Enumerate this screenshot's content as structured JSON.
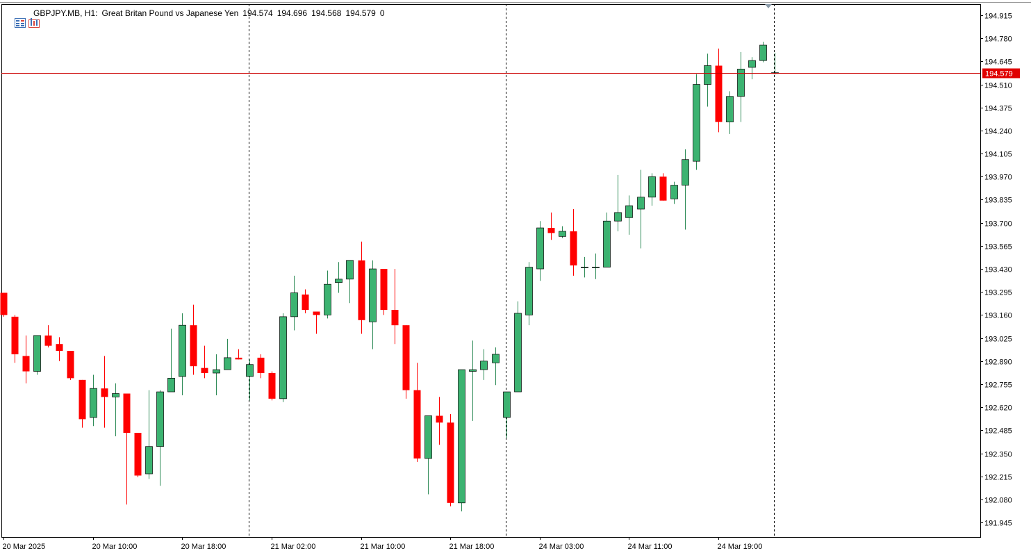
{
  "header": {
    "symbol": "GBPJPY.MB, H1:",
    "description": "Great Britan Pound vs Japanese Yen",
    "open": "194.574",
    "high": "194.696",
    "low": "194.568",
    "close": "194.579",
    "volume": "0"
  },
  "icons": [
    "window-list-icon",
    "chart-window-icon"
  ],
  "colors": {
    "bull": "#3CB371",
    "bear": "#FF0000",
    "wick_bull": "#2E8B57",
    "price_line": "#CC0000",
    "price_tag_bg": "#E00000",
    "axis": "#000000",
    "separator": "#000000"
  },
  "chart_data": {
    "type": "candlestick",
    "symbol": "GBPJPY.MB",
    "timeframe": "H1",
    "current_price": "194.579",
    "ylim": [
      191.86,
      194.98
    ],
    "y_ticks": [
      "194.915",
      "194.780",
      "194.645",
      "194.510",
      "194.375",
      "194.240",
      "194.105",
      "193.970",
      "193.835",
      "193.700",
      "193.565",
      "193.430",
      "193.295",
      "193.160",
      "193.025",
      "192.890",
      "192.755",
      "192.620",
      "192.485",
      "192.350",
      "192.215",
      "192.080",
      "191.945"
    ],
    "x_labels": [
      {
        "index": 0,
        "label": "20 Mar 2025"
      },
      {
        "index": 8,
        "label": "20 Mar 10:00"
      },
      {
        "index": 16,
        "label": "20 Mar 18:00"
      },
      {
        "index": 24,
        "label": "21 Mar 02:00"
      },
      {
        "index": 32,
        "label": "21 Mar 10:00"
      },
      {
        "index": 40,
        "label": "21 Mar 18:00"
      },
      {
        "index": 48,
        "label": "24 Mar 03:00"
      },
      {
        "index": 56,
        "label": "24 Mar 11:00"
      },
      {
        "index": 64,
        "label": "24 Mar 19:00"
      }
    ],
    "day_separators": [
      21.95,
      44.95,
      68.95
    ],
    "candles": [
      {
        "o": 193.29,
        "h": 193.29,
        "l": 193.15,
        "c": 193.16
      },
      {
        "o": 193.15,
        "h": 193.16,
        "l": 192.88,
        "c": 192.93
      },
      {
        "o": 192.92,
        "h": 193.04,
        "l": 192.76,
        "c": 192.83
      },
      {
        "o": 192.83,
        "h": 193.04,
        "l": 192.81,
        "c": 193.04
      },
      {
        "o": 193.04,
        "h": 193.1,
        "l": 192.97,
        "c": 192.98
      },
      {
        "o": 192.99,
        "h": 193.03,
        "l": 192.89,
        "c": 192.95
      },
      {
        "o": 192.95,
        "h": 192.95,
        "l": 192.78,
        "c": 192.79
      },
      {
        "o": 192.78,
        "h": 192.78,
        "l": 192.5,
        "c": 192.55
      },
      {
        "o": 192.56,
        "h": 192.81,
        "l": 192.51,
        "c": 192.73
      },
      {
        "o": 192.73,
        "h": 192.92,
        "l": 192.5,
        "c": 192.68
      },
      {
        "o": 192.68,
        "h": 192.76,
        "l": 192.45,
        "c": 192.7
      },
      {
        "o": 192.7,
        "h": 192.7,
        "l": 192.05,
        "c": 192.47
      },
      {
        "o": 192.47,
        "h": 192.47,
        "l": 192.21,
        "c": 192.22
      },
      {
        "o": 192.23,
        "h": 192.72,
        "l": 192.2,
        "c": 192.39
      },
      {
        "o": 192.39,
        "h": 192.72,
        "l": 192.16,
        "c": 192.71
      },
      {
        "o": 192.71,
        "h": 193.08,
        "l": 192.71,
        "c": 192.79
      },
      {
        "o": 192.8,
        "h": 193.17,
        "l": 192.69,
        "c": 193.1
      },
      {
        "o": 193.1,
        "h": 193.22,
        "l": 192.81,
        "c": 192.86
      },
      {
        "o": 192.85,
        "h": 192.98,
        "l": 192.79,
        "c": 192.82
      },
      {
        "o": 192.82,
        "h": 192.93,
        "l": 192.69,
        "c": 192.84
      },
      {
        "o": 192.84,
        "h": 193.02,
        "l": 192.84,
        "c": 192.91
      },
      {
        "o": 192.91,
        "h": 192.96,
        "l": 192.9,
        "c": 192.9
      },
      {
        "o": 192.8,
        "h": 192.9,
        "l": 192.66,
        "c": 192.87
      },
      {
        "o": 192.91,
        "h": 192.93,
        "l": 192.79,
        "c": 192.82
      },
      {
        "o": 192.82,
        "h": 192.83,
        "l": 192.66,
        "c": 192.67
      },
      {
        "o": 192.67,
        "h": 193.17,
        "l": 192.65,
        "c": 193.15
      },
      {
        "o": 193.15,
        "h": 193.39,
        "l": 193.07,
        "c": 193.29
      },
      {
        "o": 193.28,
        "h": 193.31,
        "l": 193.17,
        "c": 193.19
      },
      {
        "o": 193.18,
        "h": 193.18,
        "l": 193.05,
        "c": 193.16
      },
      {
        "o": 193.16,
        "h": 193.42,
        "l": 193.14,
        "c": 193.34
      },
      {
        "o": 193.35,
        "h": 193.47,
        "l": 193.29,
        "c": 193.37
      },
      {
        "o": 193.37,
        "h": 193.47,
        "l": 193.23,
        "c": 193.48
      },
      {
        "o": 193.48,
        "h": 193.59,
        "l": 193.05,
        "c": 193.13
      },
      {
        "o": 193.12,
        "h": 193.48,
        "l": 192.96,
        "c": 193.43
      },
      {
        "o": 193.43,
        "h": 193.43,
        "l": 193.16,
        "c": 193.19
      },
      {
        "o": 193.19,
        "h": 193.43,
        "l": 192.99,
        "c": 193.1
      },
      {
        "o": 193.1,
        "h": 193.1,
        "l": 192.67,
        "c": 192.72
      },
      {
        "o": 192.72,
        "h": 192.88,
        "l": 192.3,
        "c": 192.32
      },
      {
        "o": 192.32,
        "h": 192.57,
        "l": 192.11,
        "c": 192.57
      },
      {
        "o": 192.57,
        "h": 192.68,
        "l": 192.4,
        "c": 192.53
      },
      {
        "o": 192.53,
        "h": 192.58,
        "l": 192.04,
        "c": 192.06
      },
      {
        "o": 192.06,
        "h": 192.84,
        "l": 192.01,
        "c": 192.84
      },
      {
        "o": 192.83,
        "h": 193.01,
        "l": 192.54,
        "c": 192.84
      },
      {
        "o": 192.84,
        "h": 192.96,
        "l": 192.78,
        "c": 192.89
      },
      {
        "o": 192.88,
        "h": 192.97,
        "l": 192.75,
        "c": 192.93
      },
      {
        "o": 192.56,
        "h": 192.71,
        "l": 192.44,
        "c": 192.71
      },
      {
        "o": 192.71,
        "h": 193.24,
        "l": 192.71,
        "c": 193.17
      },
      {
        "o": 193.16,
        "h": 193.47,
        "l": 193.1,
        "c": 193.44
      },
      {
        "o": 193.43,
        "h": 193.71,
        "l": 193.36,
        "c": 193.67
      },
      {
        "o": 193.67,
        "h": 193.76,
        "l": 193.6,
        "c": 193.64
      },
      {
        "o": 193.62,
        "h": 193.68,
        "l": 193.61,
        "c": 193.65
      },
      {
        "o": 193.65,
        "h": 193.78,
        "l": 193.39,
        "c": 193.45
      },
      {
        "o": 193.44,
        "h": 193.5,
        "l": 193.38,
        "c": 193.44
      },
      {
        "o": 193.44,
        "h": 193.52,
        "l": 193.37,
        "c": 193.44
      },
      {
        "o": 193.44,
        "h": 193.76,
        "l": 193.44,
        "c": 193.71
      },
      {
        "o": 193.71,
        "h": 193.98,
        "l": 193.65,
        "c": 193.76
      },
      {
        "o": 193.73,
        "h": 193.86,
        "l": 193.63,
        "c": 193.8
      },
      {
        "o": 193.78,
        "h": 194.01,
        "l": 193.55,
        "c": 193.85
      },
      {
        "o": 193.85,
        "h": 193.99,
        "l": 193.8,
        "c": 193.97
      },
      {
        "o": 193.97,
        "h": 193.99,
        "l": 193.83,
        "c": 193.83
      },
      {
        "o": 193.84,
        "h": 193.94,
        "l": 193.81,
        "c": 193.92
      },
      {
        "o": 193.92,
        "h": 194.13,
        "l": 193.66,
        "c": 194.07
      },
      {
        "o": 194.06,
        "h": 194.57,
        "l": 194.01,
        "c": 194.51
      },
      {
        "o": 194.51,
        "h": 194.69,
        "l": 194.38,
        "c": 194.62
      },
      {
        "o": 194.62,
        "h": 194.72,
        "l": 194.23,
        "c": 194.29
      },
      {
        "o": 194.29,
        "h": 194.47,
        "l": 194.22,
        "c": 194.44
      },
      {
        "o": 194.44,
        "h": 194.7,
        "l": 194.29,
        "c": 194.6
      },
      {
        "o": 194.61,
        "h": 194.67,
        "l": 194.54,
        "c": 194.65
      },
      {
        "o": 194.65,
        "h": 194.76,
        "l": 194.64,
        "c": 194.74
      },
      {
        "o": 194.574,
        "h": 194.696,
        "l": 194.568,
        "c": 194.579
      }
    ]
  }
}
